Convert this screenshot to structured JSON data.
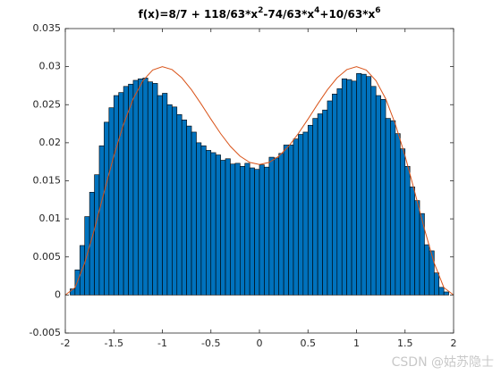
{
  "chart_data": {
    "type": "histogram",
    "title_segments": [
      "f(x)=8/7 + 118/63*x",
      "2",
      "-74/63*x",
      "4",
      "+10/63*x",
      "6"
    ],
    "bins": [
      -1.95,
      -1.9,
      -1.85,
      -1.8,
      -1.75,
      -1.7,
      -1.65,
      -1.6,
      -1.55,
      -1.5,
      -1.45,
      -1.4,
      -1.35,
      -1.3,
      -1.25,
      -1.2,
      -1.15,
      -1.1,
      -1.05,
      -1,
      -0.95,
      -0.9,
      -0.85,
      -0.8,
      -0.75,
      -0.7,
      -0.65,
      -0.6,
      -0.55,
      -0.5,
      -0.45,
      -0.4,
      -0.35,
      -0.3,
      -0.25,
      -0.2,
      -0.15,
      -0.1,
      -0.05,
      0,
      0.05,
      0.1,
      0.15,
      0.2,
      0.25,
      0.3,
      0.35,
      0.4,
      0.45,
      0.5,
      0.55,
      0.6,
      0.65,
      0.7,
      0.75,
      0.8,
      0.85,
      0.9,
      0.95,
      1,
      1.05,
      1.1,
      1.15,
      1.2,
      1.25,
      1.3,
      1.35,
      1.4,
      1.45,
      1.5,
      1.55,
      1.6,
      1.65,
      1.7,
      1.75,
      1.8,
      1.85,
      1.9,
      1.95
    ],
    "values": [
      0.0008,
      0.0033,
      0.0065,
      0.0103,
      0.0135,
      0.0158,
      0.0196,
      0.0227,
      0.0246,
      0.0262,
      0.0266,
      0.0274,
      0.0277,
      0.0282,
      0.0284,
      0.0285,
      0.028,
      0.0278,
      0.0262,
      0.0265,
      0.025,
      0.0247,
      0.0237,
      0.023,
      0.0222,
      0.0214,
      0.02,
      0.0196,
      0.019,
      0.0187,
      0.0184,
      0.0177,
      0.0179,
      0.0172,
      0.0173,
      0.0169,
      0.0173,
      0.0167,
      0.0165,
      0.0171,
      0.0168,
      0.0181,
      0.018,
      0.0186,
      0.0197,
      0.0197,
      0.0205,
      0.0211,
      0.0214,
      0.0223,
      0.0232,
      0.0238,
      0.0243,
      0.0255,
      0.0264,
      0.0271,
      0.0284,
      0.0283,
      0.0281,
      0.0291,
      0.029,
      0.0287,
      0.0274,
      0.0262,
      0.0257,
      0.0232,
      0.0229,
      0.0212,
      0.0192,
      0.0169,
      0.0142,
      0.0124,
      0.0107,
      0.0066,
      0.0058,
      0.0029,
      0.001,
      0.0004
    ],
    "color": "#0072bd",
    "edgecolor": "#000000",
    "curve": {
      "color": "#d95319",
      "x": [
        -2,
        -1.9,
        -1.8,
        -1.7,
        -1.6,
        -1.5,
        -1.4,
        -1.3,
        -1.2,
        -1.1,
        -1,
        -0.9,
        -0.8,
        -0.7,
        -0.6,
        -0.5,
        -0.4,
        -0.3,
        -0.2,
        -0.1,
        0,
        0.1,
        0.2,
        0.3,
        0.4,
        0.5,
        0.6,
        0.7,
        0.8,
        0.9,
        1,
        1.1,
        1.2,
        1.3,
        1.4,
        1.5,
        1.6,
        1.7,
        1.8,
        1.9,
        2
      ],
      "y": [
        0,
        0.00097,
        0.0042,
        0.00865,
        0.01354,
        0.01828,
        0.02245,
        0.02579,
        0.02817,
        0.02956,
        0.03,
        0.02961,
        0.02853,
        0.02696,
        0.02508,
        0.0231,
        0.0212,
        0.01953,
        0.01824,
        0.01742,
        0.01714,
        0.01742,
        0.01824,
        0.01953,
        0.0212,
        0.0231,
        0.02508,
        0.02696,
        0.02853,
        0.02961,
        0.03,
        0.02956,
        0.02817,
        0.02579,
        0.02245,
        0.01828,
        0.01354,
        0.00865,
        0.0042,
        0.00097,
        0
      ]
    },
    "xlim": [
      -2,
      2
    ],
    "xticks": [
      -2,
      -1.5,
      -1,
      -0.5,
      0,
      0.5,
      1,
      1.5,
      2
    ],
    "ylim": [
      -0.005,
      0.035
    ],
    "yticks": [
      -0.005,
      0,
      0.005,
      0.01,
      0.015,
      0.02,
      0.025,
      0.03,
      0.035
    ],
    "grid": false,
    "watermark": "CSDN @姑苏隐士"
  }
}
